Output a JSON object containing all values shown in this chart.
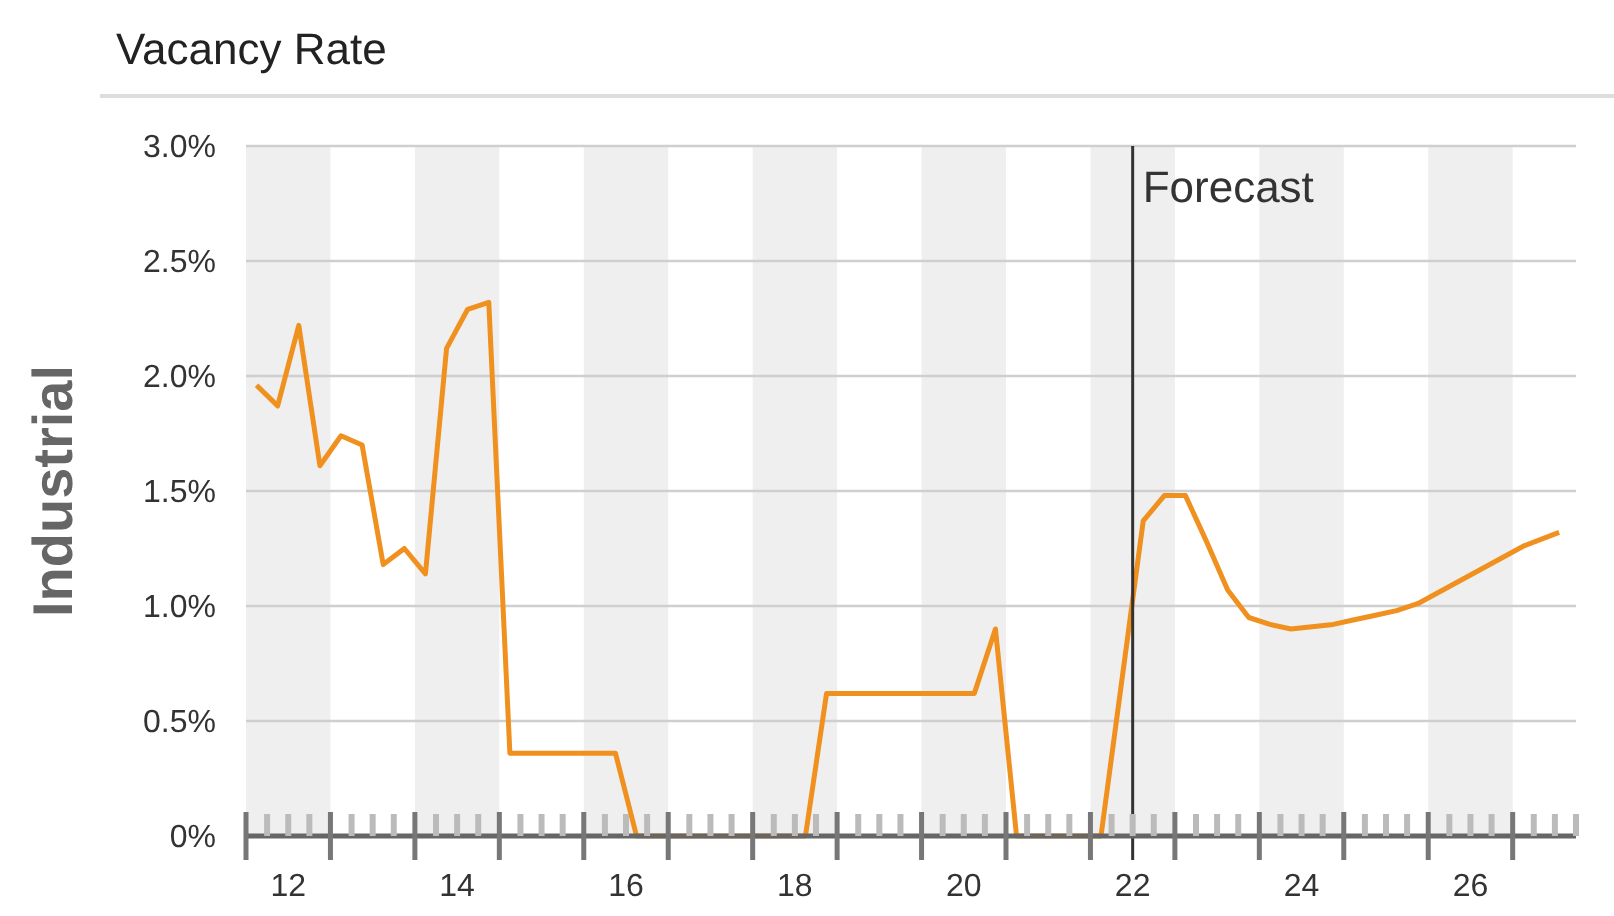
{
  "chart_data": {
    "type": "line",
    "title": "Vacancy Rate",
    "ylabel": "Industrial",
    "x": [
      11.625,
      11.875,
      12.125,
      12.375,
      12.625,
      12.875,
      13.125,
      13.375,
      13.625,
      13.875,
      14.125,
      14.375,
      14.625,
      14.875,
      15.125,
      15.375,
      15.625,
      15.875,
      16.125,
      16.375,
      16.625,
      16.875,
      17.125,
      17.375,
      17.625,
      17.875,
      18.125,
      18.375,
      18.625,
      18.875,
      19.125,
      19.375,
      19.625,
      19.875,
      20.125,
      20.375,
      20.625,
      20.875,
      21.125,
      21.375,
      21.625,
      22.125,
      22.375,
      22.625,
      22.875,
      23.125,
      23.375,
      23.625,
      23.875,
      24.125,
      24.375,
      24.625,
      24.875,
      25.125,
      25.375,
      25.625,
      25.875,
      26.125,
      26.375,
      26.625,
      27.05
    ],
    "series": [
      {
        "color": "#f0901e",
        "values": [
          1.96,
          1.87,
          2.22,
          1.61,
          1.74,
          1.7,
          1.18,
          1.25,
          1.14,
          2.12,
          2.29,
          2.32,
          0.36,
          0.36,
          0.36,
          0.36,
          0.36,
          0.36,
          0,
          0,
          0,
          0,
          0,
          0,
          0,
          0,
          0,
          0.62,
          0.62,
          0.62,
          0.62,
          0.62,
          0.62,
          0.62,
          0.62,
          0.9,
          0,
          0,
          0,
          0,
          0,
          1.37,
          1.48,
          1.48,
          1.28,
          1.07,
          0.95,
          0.92,
          0.9,
          0.91,
          0.92,
          0.94,
          0.96,
          0.98,
          1.01,
          1.06,
          1.11,
          1.16,
          1.21,
          1.26,
          1.32
        ]
      }
    ],
    "xlim": [
      11.5,
      27.25
    ],
    "xticks": [
      {
        "value": 11.5,
        "label": null
      },
      {
        "value": 11.75,
        "label": null
      },
      12,
      {
        "value": 12.25,
        "label": null
      },
      {
        "value": 12.5,
        "label": null
      },
      {
        "value": 12.75,
        "label": null
      },
      {
        "value": 13,
        "label": null
      },
      {
        "value": 13.25,
        "label": null
      },
      {
        "value": 13.5,
        "label": null
      },
      {
        "value": 13.75,
        "label": null
      },
      14,
      {
        "value": 14.25,
        "label": null
      },
      {
        "value": 14.5,
        "label": null
      },
      {
        "value": 14.75,
        "label": null
      },
      {
        "value": 15,
        "label": null
      },
      {
        "value": 15.25,
        "label": null
      },
      {
        "value": 15.5,
        "label": null
      },
      {
        "value": 15.75,
        "label": null
      },
      16,
      {
        "value": 16.25,
        "label": null
      },
      {
        "value": 16.5,
        "label": null
      },
      {
        "value": 16.75,
        "label": null
      },
      {
        "value": 17,
        "label": null
      },
      {
        "value": 17.25,
        "label": null
      },
      {
        "value": 17.5,
        "label": null
      },
      {
        "value": 17.75,
        "label": null
      },
      18,
      {
        "value": 18.25,
        "label": null
      },
      {
        "value": 18.5,
        "label": null
      },
      {
        "value": 18.75,
        "label": null
      },
      {
        "value": 19,
        "label": null
      },
      {
        "value": 19.25,
        "label": null
      },
      {
        "value": 19.5,
        "label": null
      },
      {
        "value": 19.75,
        "label": null
      },
      20,
      {
        "value": 20.25,
        "label": null
      },
      {
        "value": 20.5,
        "label": null
      },
      {
        "value": 20.75,
        "label": null
      },
      {
        "value": 21,
        "label": null
      },
      {
        "value": 21.25,
        "label": null
      },
      {
        "value": 21.5,
        "label": null
      },
      {
        "value": 21.75,
        "label": null
      },
      22,
      {
        "value": 22.25,
        "label": null
      },
      {
        "value": 22.5,
        "label": null
      },
      {
        "value": 22.75,
        "label": null
      },
      {
        "value": 23,
        "label": null
      },
      {
        "value": 23.25,
        "label": null
      },
      {
        "value": 23.5,
        "label": null
      },
      {
        "value": 23.75,
        "label": null
      },
      24,
      {
        "value": 24.25,
        "label": null
      },
      {
        "value": 24.5,
        "label": null
      },
      {
        "value": 24.75,
        "label": null
      },
      {
        "value": 25,
        "label": null
      },
      {
        "value": 25.25,
        "label": null
      },
      {
        "value": 25.5,
        "label": null
      },
      {
        "value": 25.75,
        "label": null
      },
      26,
      {
        "value": 26.25,
        "label": null
      },
      {
        "value": 26.5,
        "label": null
      },
      {
        "value": 26.75,
        "label": null
      },
      {
        "value": 27,
        "label": null
      },
      {
        "value": 27.25,
        "label": null
      }
    ],
    "ylim": [
      0,
      3
    ],
    "yticks": [
      {
        "value": 0,
        "label": "0%"
      },
      {
        "value": 0.5,
        "label": "0.5%"
      },
      {
        "value": 1,
        "label": "1.0%"
      },
      {
        "value": 1.5,
        "label": "1.5%"
      },
      {
        "value": 2,
        "label": "2.0%"
      },
      {
        "value": 2.5,
        "label": "2.5%"
      },
      {
        "value": 3,
        "label": "3.0%"
      }
    ],
    "grid": "y",
    "bands": [
      {
        "axis": "x",
        "from": 11.5,
        "to": 12.5,
        "color": "#efefef"
      },
      {
        "axis": "x",
        "from": 13.5,
        "to": 14.5,
        "color": "#efefef"
      },
      {
        "axis": "x",
        "from": 15.5,
        "to": 16.5,
        "color": "#efefef"
      },
      {
        "axis": "x",
        "from": 17.5,
        "to": 18.5,
        "color": "#efefef"
      },
      {
        "axis": "x",
        "from": 19.5,
        "to": 20.5,
        "color": "#efefef"
      },
      {
        "axis": "x",
        "from": 21.5,
        "to": 22.5,
        "color": "#efefef"
      },
      {
        "axis": "x",
        "from": 23.5,
        "to": 24.5,
        "color": "#efefef"
      },
      {
        "axis": "x",
        "from": 25.5,
        "to": 26.5,
        "color": "#efefef"
      }
    ],
    "ref_lines": [
      {
        "axis": "x",
        "value": 22,
        "label": "Forecast",
        "color": "#333333"
      }
    ]
  }
}
